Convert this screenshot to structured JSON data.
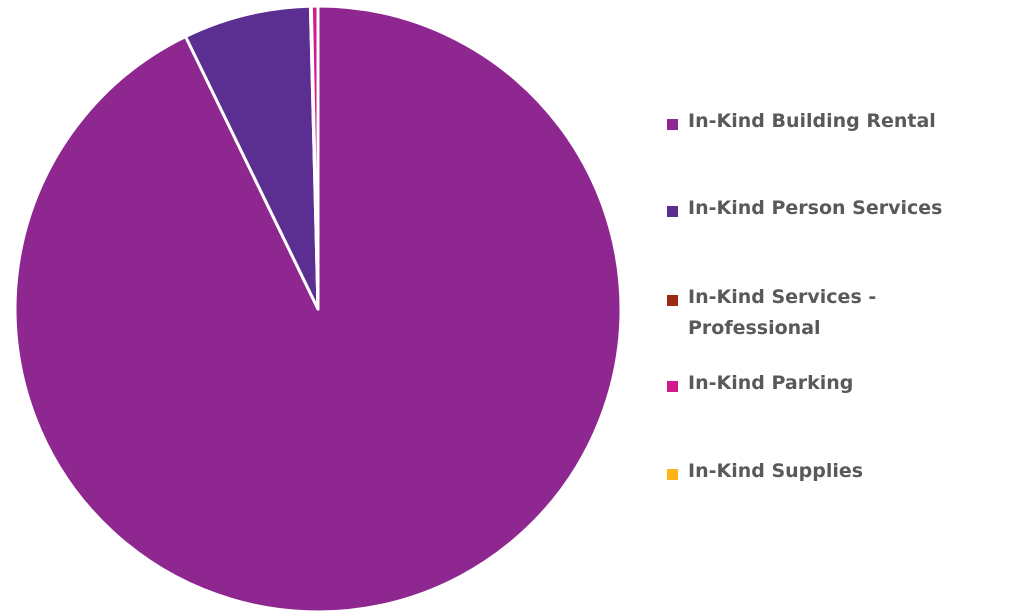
{
  "chart_data": {
    "type": "pie",
    "title": "",
    "start_angle_deg": 0,
    "direction": "clockwise",
    "legend_position": "right",
    "slices": [
      {
        "label": "In-Kind Building Rental",
        "value": 92.8,
        "color": "#8E278F"
      },
      {
        "label": "In-Kind Person Services",
        "value": 6.8,
        "color": "#5B2E91"
      },
      {
        "label": "In-Kind Services - Professional",
        "value": 0.05,
        "color": "#9E2A14"
      },
      {
        "label": "In-Kind Parking",
        "value": 0.35,
        "color": "#D01C8B"
      },
      {
        "label": "In-Kind Supplies",
        "value": 0.0,
        "color": "#FDB515"
      }
    ]
  }
}
